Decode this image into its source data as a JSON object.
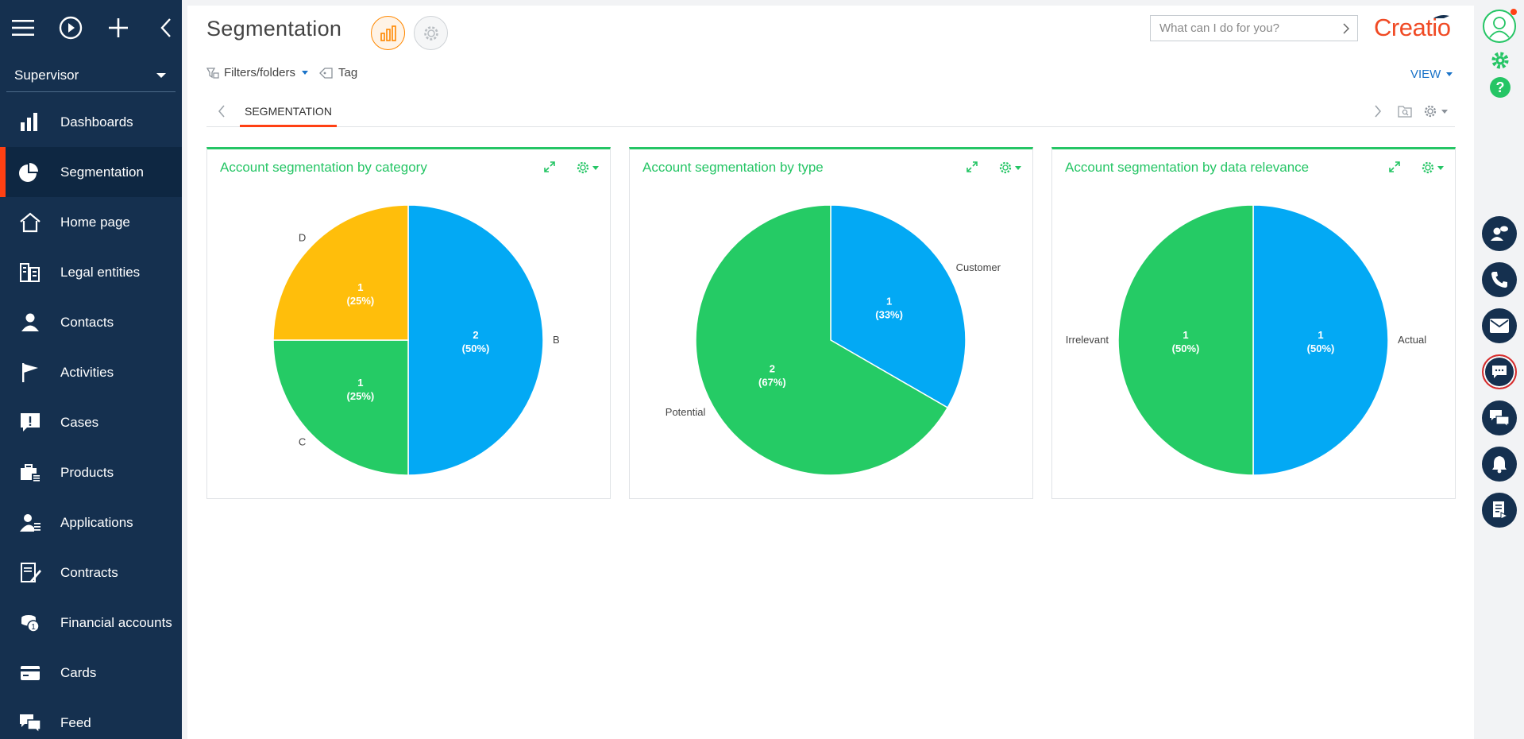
{
  "sidebar": {
    "user": "Supervisor",
    "items": [
      {
        "label": "Dashboards",
        "icon": "dashboards-icon",
        "active": false
      },
      {
        "label": "Segmentation",
        "icon": "segmentation-icon",
        "active": true
      },
      {
        "label": "Home page",
        "icon": "home-icon",
        "active": false
      },
      {
        "label": "Legal entities",
        "icon": "legal-entities-icon",
        "active": false
      },
      {
        "label": "Contacts",
        "icon": "contacts-icon",
        "active": false
      },
      {
        "label": "Activities",
        "icon": "activities-flag-icon",
        "active": false
      },
      {
        "label": "Cases",
        "icon": "cases-icon",
        "active": false
      },
      {
        "label": "Products",
        "icon": "products-icon",
        "active": false
      },
      {
        "label": "Applications",
        "icon": "applications-icon",
        "active": false
      },
      {
        "label": "Contracts",
        "icon": "contracts-icon",
        "active": false
      },
      {
        "label": "Financial accounts",
        "icon": "financial-accounts-icon",
        "active": false
      },
      {
        "label": "Cards",
        "icon": "cards-icon",
        "active": false
      },
      {
        "label": "Feed",
        "icon": "feed-icon",
        "active": false
      }
    ]
  },
  "header": {
    "title": "Segmentation",
    "search_placeholder": "What can I do for you?",
    "logo": "Creatio"
  },
  "toolbar": {
    "filters_label": "Filters/folders",
    "tag_label": "Tag",
    "view_label": "VIEW"
  },
  "tabs": {
    "active": "SEGMENTATION"
  },
  "colors": {
    "blue": "#03a9f4",
    "green": "#25cb65",
    "yellow": "#ffbe0b",
    "accent": "#ff4013",
    "sidebar": "#15304f"
  },
  "chart_data": [
    {
      "type": "pie",
      "title": "Account segmentation by category",
      "slices": [
        {
          "label": "B",
          "value": 2,
          "percent": "50%",
          "color": "#03a9f4"
        },
        {
          "label": "C",
          "value": 1,
          "percent": "25%",
          "color": "#25cb65"
        },
        {
          "label": "D",
          "value": 1,
          "percent": "25%",
          "color": "#ffbe0b"
        }
      ]
    },
    {
      "type": "pie",
      "title": "Account segmentation by type",
      "slices": [
        {
          "label": "Customer",
          "value": 1,
          "percent": "33%",
          "color": "#03a9f4"
        },
        {
          "label": "Potential",
          "value": 2,
          "percent": "67%",
          "color": "#25cb65"
        }
      ]
    },
    {
      "type": "pie",
      "title": "Account segmentation by data relevance",
      "slices": [
        {
          "label": "Actual",
          "value": 1,
          "percent": "50%",
          "color": "#03a9f4"
        },
        {
          "label": "Irrelevant",
          "value": 1,
          "percent": "50%",
          "color": "#25cb65"
        }
      ]
    }
  ],
  "rail": [
    "profile-icon",
    "settings-gear-icon",
    "help-icon",
    "contact-center-icon",
    "phone-icon",
    "email-icon",
    "chat-icon",
    "feed-messages-icon",
    "notifications-bell-icon",
    "process-log-icon"
  ]
}
